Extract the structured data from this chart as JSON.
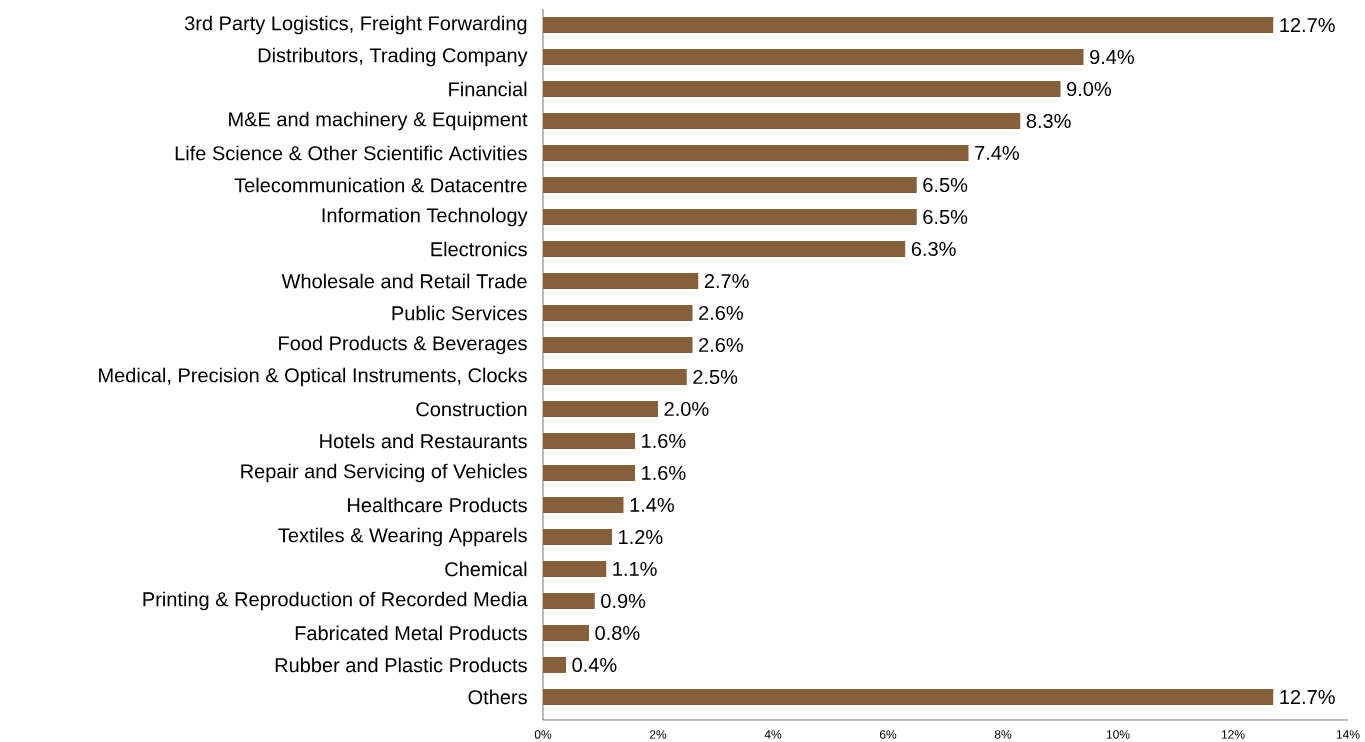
{
  "chart_data": {
    "type": "bar",
    "orientation": "horizontal",
    "categories": [
      "3rd Party Logistics, Freight Forwarding",
      "Distributors, Trading Company",
      "Financial",
      "M&E and machinery & Equipment",
      "Life Science & Other Scientific Activities",
      "Telecommunication & Datacentre",
      "Information Technology",
      "Electronics",
      "Wholesale and Retail Trade",
      "Public Services",
      "Food Products & Beverages",
      "Medical, Precision & Optical Instruments, Clocks",
      "Construction",
      "Hotels and Restaurants",
      "Repair and Servicing of Vehicles",
      "Healthcare Products",
      "Textiles & Wearing Apparels",
      "Chemical",
      "Printing & Reproduction of Recorded Media",
      "Fabricated Metal Products",
      "Rubber and Plastic Products",
      "Others"
    ],
    "values": [
      12.7,
      9.4,
      9.0,
      8.3,
      7.4,
      6.5,
      6.5,
      6.3,
      2.7,
      2.6,
      2.6,
      2.5,
      2.0,
      1.6,
      1.6,
      1.4,
      1.2,
      1.1,
      0.9,
      0.8,
      0.4,
      12.7
    ],
    "value_labels": [
      "12.7%",
      "9.4%",
      "9.0%",
      "8.3%",
      "7.4%",
      "6.5%",
      "6.5%",
      "6.3%",
      "2.7%",
      "2.6%",
      "2.6%",
      "2.5%",
      "2.0%",
      "1.6%",
      "1.6%",
      "1.4%",
      "1.2%",
      "1.1%",
      "0.9%",
      "0.8%",
      "0.4%",
      "12.7%"
    ],
    "color": "#86603a",
    "xlim": [
      0,
      14
    ],
    "xticks": [
      {
        "value": 0,
        "label": "0%"
      },
      {
        "value": 2,
        "label": "2%"
      },
      {
        "value": 4,
        "label": "4%"
      },
      {
        "value": 6,
        "label": "6%"
      },
      {
        "value": 8,
        "label": "8%"
      },
      {
        "value": 10,
        "label": "10%"
      },
      {
        "value": 12,
        "label": "12%"
      },
      {
        "value": 14,
        "label": "14%"
      }
    ]
  }
}
